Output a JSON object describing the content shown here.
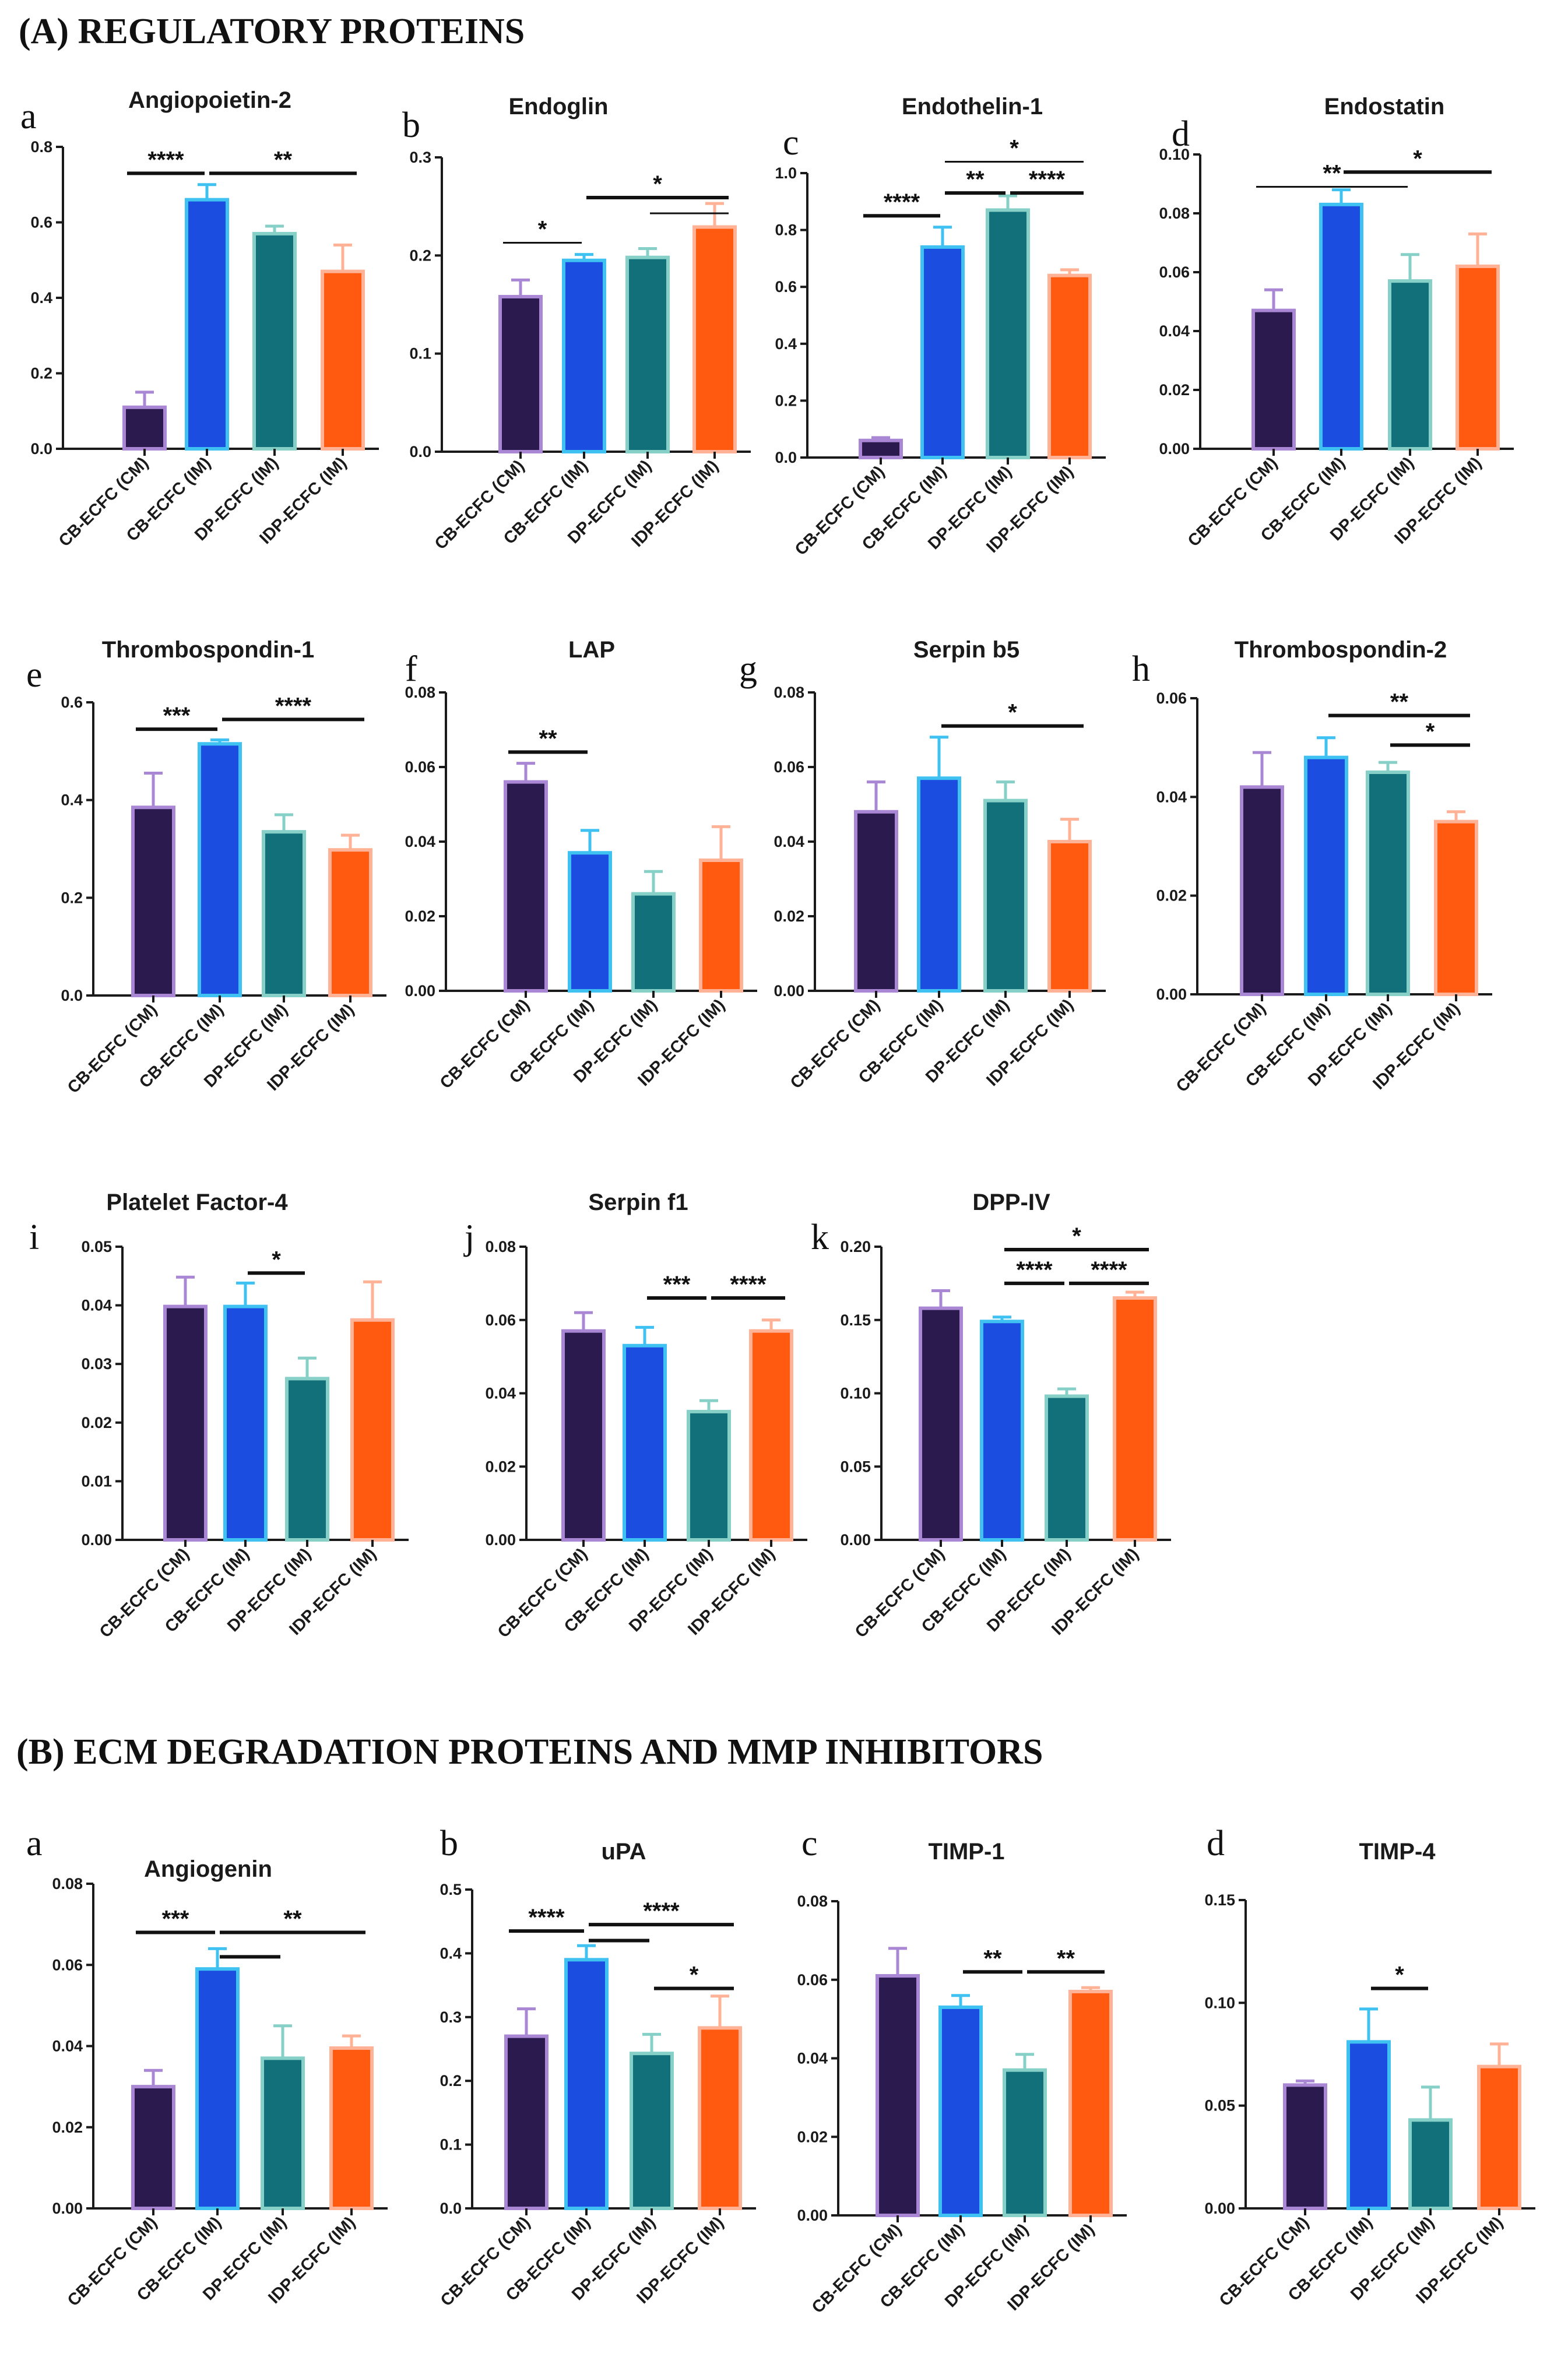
{
  "sections": {
    "a": "(A) REGULATORY PROTEINS",
    "b": "(B) ECM DEGRADATION  PROTEINS  AND  MMP INHIBITORS"
  },
  "colors": {
    "CB-ECFC (CM)": {
      "fill": "#2b1a4e",
      "edge": "#a987d4"
    },
    "CB-ECFC (IM)": {
      "fill": "#1b4ee0",
      "edge": "#3fc2f2"
    },
    "DP-ECFC (IM)": {
      "fill": "#12707a",
      "edge": "#86d0c8"
    },
    "IDP-ECFC (IM)": {
      "fill": "#ff5a10",
      "edge": "#ffb295"
    }
  },
  "chart_data": [
    {
      "id": "A-a",
      "letter": "a",
      "type": "bar",
      "title": "Angiopoietin-2",
      "categories": [
        "CB-ECFC (CM)",
        "CB-ECFC (IM)",
        "DP-ECFC (IM)",
        "IDP-ECFC (IM)"
      ],
      "values": [
        0.11,
        0.66,
        0.57,
        0.47
      ],
      "errors": [
        0.04,
        0.04,
        0.02,
        0.07
      ],
      "ylim": [
        0,
        0.8
      ],
      "yticks": [
        "0.0",
        "0.2",
        "0.4",
        "0.6",
        "0.8"
      ],
      "significance": [
        {
          "label": "****",
          "from": 0,
          "to": 1,
          "y": 0.73
        },
        {
          "label": "**",
          "from": 1,
          "to": 3,
          "y": 0.73
        }
      ]
    },
    {
      "id": "A-b",
      "letter": "b",
      "type": "bar",
      "title": "Endoglin",
      "categories": [
        "CB-ECFC (CM)",
        "CB-ECFC (IM)",
        "DP-ECFC (IM)",
        "IDP-ECFC (IM)"
      ],
      "values": [
        0.158,
        0.195,
        0.198,
        0.229
      ],
      "errors": [
        0.017,
        0.006,
        0.009,
        0.024
      ],
      "ylim": [
        0,
        0.3
      ],
      "yticks": [
        "0.0",
        "0.1",
        "0.2",
        "0.3"
      ],
      "significance": [
        {
          "label": "*",
          "from": 0,
          "to": 1,
          "y": 0.213,
          "thin": true
        },
        {
          "label": "*",
          "from": 1,
          "to": 3,
          "y": 0.259
        },
        {
          "label": "",
          "from": 2,
          "to": 3,
          "y": 0.243,
          "thin": true
        }
      ]
    },
    {
      "id": "A-c",
      "letter": "c",
      "type": "bar",
      "title": "Endothelin-1",
      "categories": [
        "CB-ECFC (CM)",
        "CB-ECFC (IM)",
        "DP-ECFC (IM)",
        "IDP-ECFC (IM)"
      ],
      "values": [
        0.06,
        0.74,
        0.87,
        0.64
      ],
      "errors": [
        0.01,
        0.07,
        0.05,
        0.02
      ],
      "ylim": [
        0,
        1.0
      ],
      "yticks": [
        "0.0",
        "0.2",
        "0.4",
        "0.6",
        "0.8",
        "1.0"
      ],
      "significance": [
        {
          "label": "****",
          "from": 0,
          "to": 1,
          "y": 0.85
        },
        {
          "label": "**",
          "from": 1,
          "to": 2,
          "y": 0.93
        },
        {
          "label": "****",
          "from": 2,
          "to": 3,
          "y": 0.93
        },
        {
          "label": "*",
          "from": 1,
          "to": 3,
          "y": 1.04,
          "thin": true
        }
      ]
    },
    {
      "id": "A-d",
      "letter": "d",
      "type": "bar",
      "title": "Endostatin",
      "categories": [
        "CB-ECFC (CM)",
        "CB-ECFC (IM)",
        "DP-ECFC (IM)",
        "IDP-ECFC (IM)"
      ],
      "values": [
        0.047,
        0.083,
        0.057,
        0.062
      ],
      "errors": [
        0.007,
        0.005,
        0.009,
        0.011
      ],
      "ylim": [
        0,
        0.1
      ],
      "yticks": [
        "0.00",
        "0.02",
        "0.04",
        "0.06",
        "0.08",
        "0.10"
      ],
      "significance": [
        {
          "label": "**",
          "from": 0,
          "to": 2,
          "y": 0.089,
          "thin": true
        },
        {
          "label": "*",
          "from": 1,
          "to": 3,
          "y": 0.094
        }
      ]
    },
    {
      "id": "A-e",
      "letter": "e",
      "type": "bar",
      "title": "Thrombospondin-1",
      "categories": [
        "CB-ECFC (CM)",
        "CB-ECFC (IM)",
        "DP-ECFC (IM)",
        "IDP-ECFC (IM)"
      ],
      "values": [
        0.385,
        0.515,
        0.335,
        0.298
      ],
      "errors": [
        0.07,
        0.008,
        0.035,
        0.03
      ],
      "ylim": [
        0,
        0.6
      ],
      "yticks": [
        "0.0",
        "0.2",
        "0.4",
        "0.6"
      ],
      "significance": [
        {
          "label": "***",
          "from": 0,
          "to": 1,
          "y": 0.545
        },
        {
          "label": "****",
          "from": 1,
          "to": 3,
          "y": 0.565
        }
      ]
    },
    {
      "id": "A-f",
      "letter": "f",
      "type": "bar",
      "title": "LAP",
      "categories": [
        "CB-ECFC (CM)",
        "CB-ECFC (IM)",
        "DP-ECFC (IM)",
        "IDP-ECFC (IM)"
      ],
      "values": [
        0.056,
        0.037,
        0.026,
        0.035
      ],
      "errors": [
        0.005,
        0.006,
        0.006,
        0.009
      ],
      "ylim": [
        0,
        0.08
      ],
      "yticks": [
        "0.00",
        "0.02",
        "0.04",
        "0.06",
        "0.08"
      ],
      "significance": [
        {
          "label": "**",
          "from": 0,
          "to": 1,
          "y": 0.064
        }
      ]
    },
    {
      "id": "A-g",
      "letter": "g",
      "type": "bar",
      "title": "Serpin b5",
      "categories": [
        "CB-ECFC (CM)",
        "CB-ECFC (IM)",
        "DP-ECFC (IM)",
        "IDP-ECFC (IM)"
      ],
      "values": [
        0.048,
        0.057,
        0.051,
        0.04
      ],
      "errors": [
        0.008,
        0.011,
        0.005,
        0.006
      ],
      "ylim": [
        0,
        0.08
      ],
      "yticks": [
        "0.00",
        "0.02",
        "0.04",
        "0.06",
        "0.08"
      ],
      "significance": [
        {
          "label": "*",
          "from": 1,
          "to": 3,
          "y": 0.071
        }
      ]
    },
    {
      "id": "A-h",
      "letter": "h",
      "type": "bar",
      "title": "Thrombospondin-2",
      "categories": [
        "CB-ECFC (CM)",
        "CB-ECFC (IM)",
        "DP-ECFC (IM)",
        "IDP-ECFC (IM)"
      ],
      "values": [
        0.042,
        0.048,
        0.045,
        0.035
      ],
      "errors": [
        0.007,
        0.004,
        0.002,
        0.002
      ],
      "ylim": [
        0,
        0.06
      ],
      "yticks": [
        "0.00",
        "0.02",
        "0.04",
        "0.06"
      ],
      "significance": [
        {
          "label": "**",
          "from": 1,
          "to": 3,
          "y": 0.0565
        },
        {
          "label": "*",
          "from": 2,
          "to": 3,
          "y": 0.0505
        }
      ]
    },
    {
      "id": "A-i",
      "letter": "i",
      "type": "bar",
      "title": "Platelet Factor-4",
      "categories": [
        "CB-ECFC (CM)",
        "CB-ECFC (IM)",
        "DP-ECFC (IM)",
        "IDP-ECFC (IM)"
      ],
      "values": [
        0.0398,
        0.0398,
        0.0275,
        0.0375
      ],
      "errors": [
        0.005,
        0.004,
        0.0035,
        0.0065
      ],
      "ylim": [
        0,
        0.05
      ],
      "yticks": [
        "0.00",
        "0.01",
        "0.02",
        "0.03",
        "0.04",
        "0.05"
      ],
      "significance": [
        {
          "label": "*",
          "from": 1,
          "to": 2,
          "y": 0.0455
        }
      ]
    },
    {
      "id": "A-j",
      "letter": "j",
      "type": "bar",
      "title": "Serpin f1",
      "categories": [
        "CB-ECFC (CM)",
        "CB-ECFC (IM)",
        "DP-ECFC (IM)",
        "IDP-ECFC (IM)"
      ],
      "values": [
        0.057,
        0.053,
        0.035,
        0.057
      ],
      "errors": [
        0.005,
        0.005,
        0.003,
        0.003
      ],
      "ylim": [
        0,
        0.08
      ],
      "yticks": [
        "0.00",
        "0.02",
        "0.04",
        "0.06",
        "0.08"
      ],
      "significance": [
        {
          "label": "***",
          "from": 1,
          "to": 2,
          "y": 0.066
        },
        {
          "label": "****",
          "from": 2,
          "to": 3,
          "y": 0.066
        }
      ]
    },
    {
      "id": "A-k",
      "letter": "k",
      "type": "bar",
      "title": "DPP-IV",
      "categories": [
        "CB-ECFC (CM)",
        "CB-ECFC (IM)",
        "DP-ECFC (IM)",
        "IDP-ECFC (IM)"
      ],
      "values": [
        0.158,
        0.149,
        0.098,
        0.165
      ],
      "errors": [
        0.012,
        0.003,
        0.005,
        0.004
      ],
      "ylim": [
        0,
        0.2
      ],
      "yticks": [
        "0.00",
        "0.05",
        "0.10",
        "0.15",
        "0.20"
      ],
      "significance": [
        {
          "label": "****",
          "from": 1,
          "to": 2,
          "y": 0.175
        },
        {
          "label": "****",
          "from": 2,
          "to": 3,
          "y": 0.175
        },
        {
          "label": "*",
          "from": 1,
          "to": 3,
          "y": 0.198
        }
      ]
    },
    {
      "id": "B-a",
      "letter": "a",
      "type": "bar",
      "title": "Angiogenin",
      "categories": [
        "CB-ECFC (CM)",
        "CB-ECFC (IM)",
        "DP-ECFC (IM)",
        "IDP-ECFC (IM)"
      ],
      "values": [
        0.03,
        0.059,
        0.037,
        0.0395
      ],
      "errors": [
        0.004,
        0.005,
        0.008,
        0.003
      ],
      "ylim": [
        0,
        0.08
      ],
      "yticks": [
        "0.00",
        "0.02",
        "0.04",
        "0.06",
        "0.08"
      ],
      "significance": [
        {
          "label": "***",
          "from": 0,
          "to": 1,
          "y": 0.068
        },
        {
          "label": "**",
          "from": 1,
          "to": 3,
          "y": 0.068
        },
        {
          "label": "",
          "from": 1,
          "to": 2,
          "y": 0.062
        }
      ]
    },
    {
      "id": "B-b",
      "letter": "b",
      "type": "bar",
      "title": "uPA",
      "categories": [
        "CB-ECFC (CM)",
        "CB-ECFC (IM)",
        "DP-ECFC (IM)",
        "IDP-ECFC (IM)"
      ],
      "values": [
        0.27,
        0.39,
        0.243,
        0.283
      ],
      "errors": [
        0.043,
        0.022,
        0.03,
        0.05
      ],
      "ylim": [
        0,
        0.5
      ],
      "yticks": [
        "0.0",
        "0.1",
        "0.2",
        "0.3",
        "0.4",
        "0.5"
      ],
      "significance": [
        {
          "label": "****",
          "from": 0,
          "to": 1,
          "y": 0.435
        },
        {
          "label": "****",
          "from": 1,
          "to": 3,
          "y": 0.445
        },
        {
          "label": "",
          "from": 1,
          "to": 2,
          "y": 0.42
        },
        {
          "label": "*",
          "from": 2,
          "to": 3,
          "y": 0.345
        }
      ]
    },
    {
      "id": "B-c",
      "letter": "c",
      "type": "bar",
      "title": "TIMP-1",
      "categories": [
        "CB-ECFC (CM)",
        "CB-ECFC (IM)",
        "DP-ECFC (IM)",
        "IDP-ECFC (IM)"
      ],
      "values": [
        0.061,
        0.053,
        0.037,
        0.057
      ],
      "errors": [
        0.007,
        0.003,
        0.004,
        0.001
      ],
      "ylim": [
        0,
        0.08
      ],
      "yticks": [
        "0.00",
        "0.02",
        "0.04",
        "0.06",
        "0.08"
      ],
      "significance": [
        {
          "label": "**",
          "from": 1,
          "to": 2,
          "y": 0.062
        },
        {
          "label": "**",
          "from": 2,
          "to": 3,
          "y": 0.062
        }
      ]
    },
    {
      "id": "B-d",
      "letter": "d",
      "type": "bar",
      "title": "TIMP-4",
      "categories": [
        "CB-ECFC (CM)",
        "CB-ECFC (IM)",
        "DP-ECFC (IM)",
        "IDP-ECFC (IM)"
      ],
      "values": [
        0.06,
        0.081,
        0.043,
        0.069
      ],
      "errors": [
        0.002,
        0.016,
        0.016,
        0.011
      ],
      "ylim": [
        0,
        0.15
      ],
      "yticks": [
        "0.00",
        "0.05",
        "0.10",
        "0.15"
      ],
      "significance": [
        {
          "label": "*",
          "from": 1,
          "to": 2,
          "y": 0.107
        }
      ]
    }
  ]
}
